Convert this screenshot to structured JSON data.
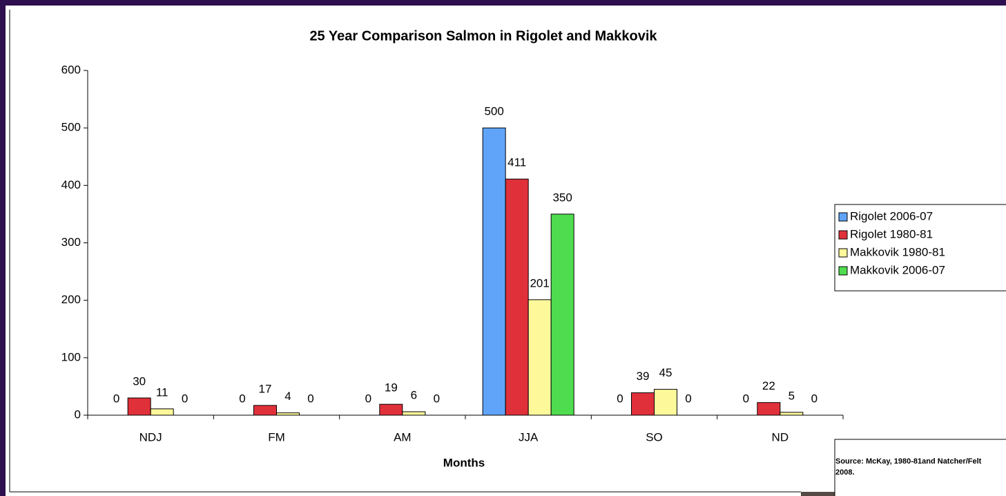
{
  "chart_data": {
    "type": "bar",
    "title": "25 Year Comparison Salmon in Rigolet and Makkovik",
    "x_label": "Months",
    "categories": [
      "NDJ",
      "FM",
      "AM",
      "JJA",
      "SO",
      "ND"
    ],
    "series": [
      {
        "name": "Rigolet 2006-07",
        "color": "#5fa4f8",
        "values": [
          0,
          0,
          0,
          500,
          0,
          0
        ]
      },
      {
        "name": "Rigolet 1980-81",
        "color": "#e0303a",
        "values": [
          30,
          17,
          19,
          411,
          39,
          22
        ]
      },
      {
        "name": "Makkovik 1980-81",
        "color": "#fdf89a",
        "values": [
          11,
          4,
          6,
          201,
          45,
          5
        ]
      },
      {
        "name": "Makkovik 2006-07",
        "color": "#4fdc4f",
        "values": [
          0,
          0,
          0,
          350,
          0,
          0
        ]
      }
    ],
    "ylim": [
      0,
      600
    ],
    "yticks": [
      0,
      100,
      200,
      300,
      400,
      500,
      600
    ],
    "legend": "right",
    "source": "Source: McKay, 1980-81and Natcher/Felt 2008."
  }
}
